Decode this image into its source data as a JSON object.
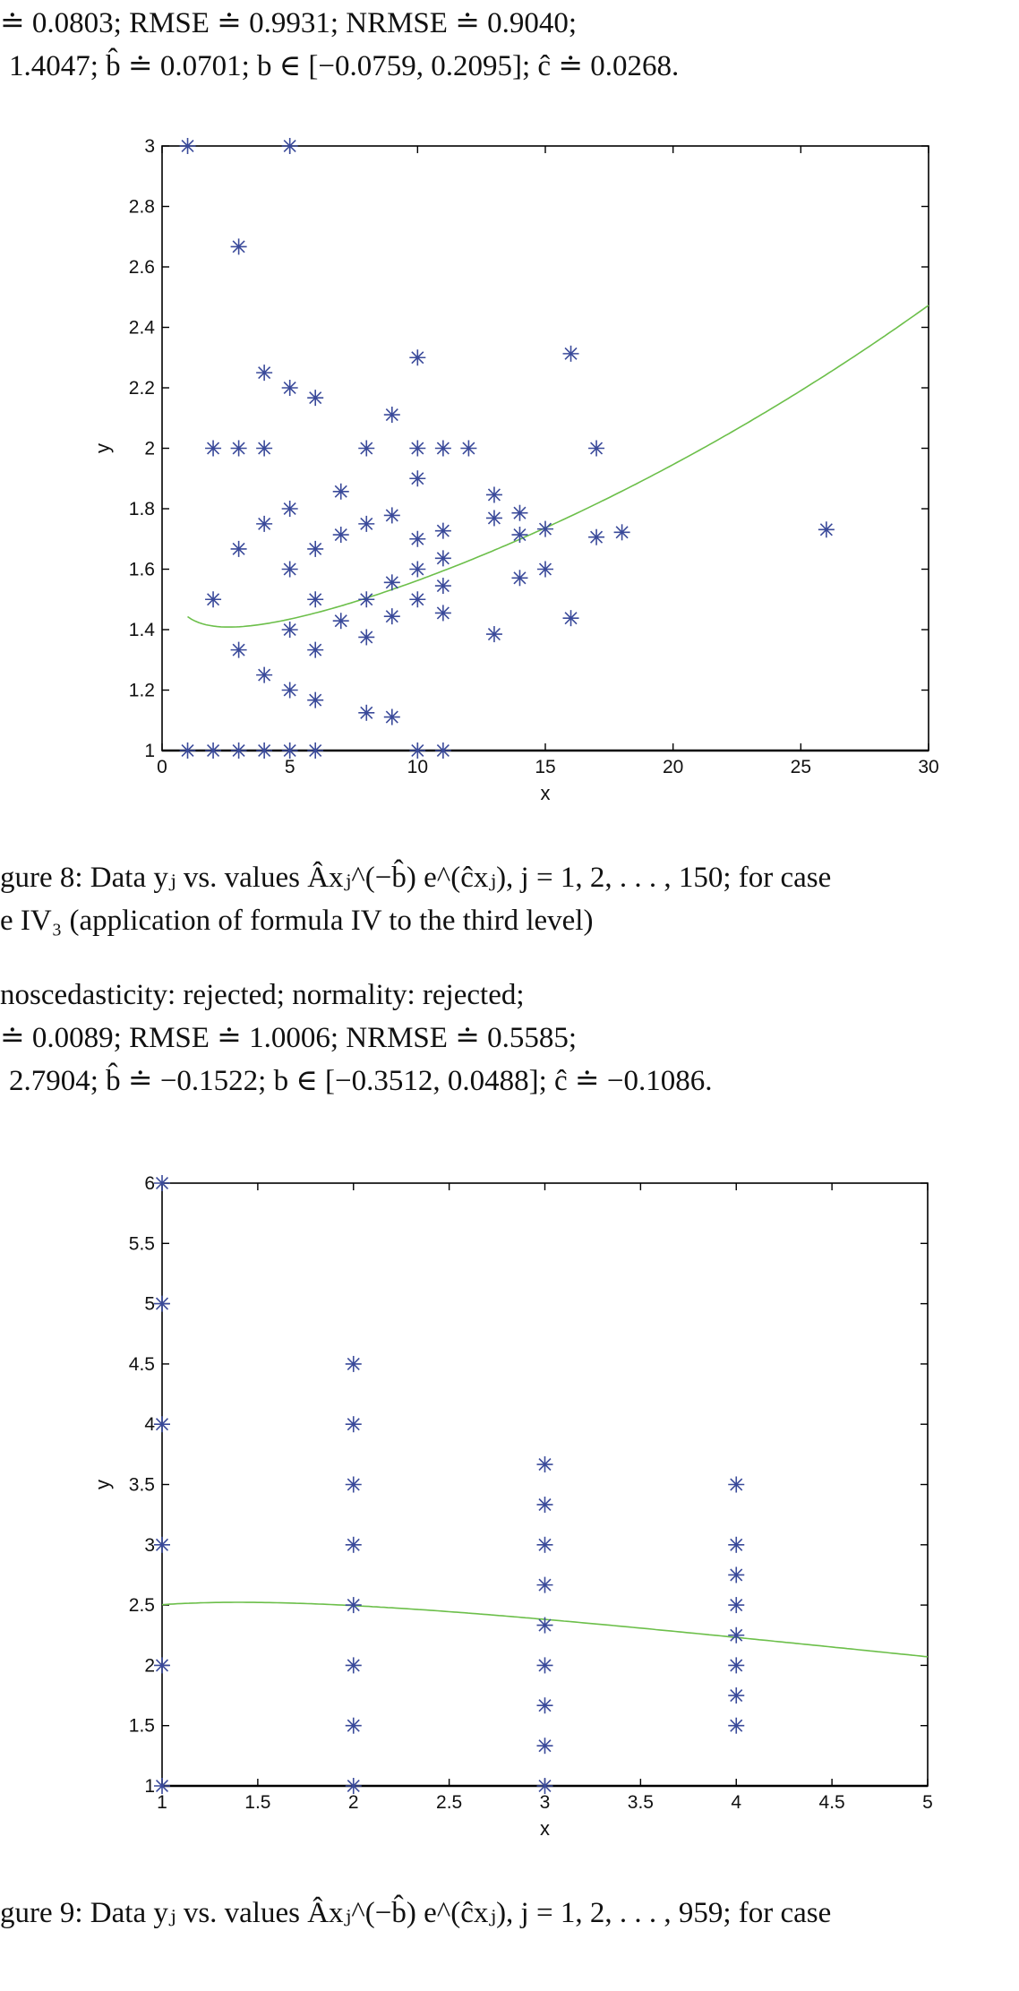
{
  "document": {
    "top_block": {
      "line1": "≐ 0.0803; RMSE ≐ 0.9931; NRMSE ≐ 0.9040;",
      "line2": "1.4047; b̂ ≐ 0.0701; b ∈ [−0.0759, 0.2095]; ĉ ≐ 0.0268."
    },
    "figure8": {
      "caption_line1": "gure 8: Data yⱼ vs. values Âxⱼ^(−b̂) e^(ĉxⱼ), j = 1, 2, . . . , 150; for case",
      "caption_line2": "e IV₃ (application of formula IV to the third level)"
    },
    "middle_block": {
      "line1": "noscedasticity: rejected; normality: rejected;",
      "line2": "≐ 0.0089; RMSE ≐ 1.0006; NRMSE ≐ 0.5585;",
      "line3": "2.7904; b̂ ≐ −0.1522; b ∈ [−0.3512, 0.0488]; ĉ ≐ −0.1086."
    },
    "figure9": {
      "caption_line1": "gure 9: Data yⱼ vs. values Âxⱼ^(−b̂) e^(ĉxⱼ), j = 1, 2, . . . , 959; for case"
    }
  },
  "colors": {
    "marker": "#3a4a9a",
    "curve": "#6cbf4a",
    "axis": "#000000"
  },
  "chart_data": [
    {
      "type": "scatter",
      "title": "",
      "xlabel": "x",
      "ylabel": "y",
      "xlim": [
        0,
        30
      ],
      "ylim": [
        1,
        3
      ],
      "xticks": [
        0,
        5,
        10,
        15,
        20,
        25,
        30
      ],
      "yticks": [
        1,
        1.2,
        1.4,
        1.6,
        1.8,
        2,
        2.2,
        2.4,
        2.6,
        2.8,
        3
      ],
      "grid": false,
      "legend": null,
      "series": [
        {
          "name": "data y_j",
          "marker": "asterisk",
          "points": [
            [
              1,
              3
            ],
            [
              1,
              1
            ],
            [
              2,
              2
            ],
            [
              2,
              1.5
            ],
            [
              2,
              1
            ],
            [
              3,
              2.667
            ],
            [
              3,
              2
            ],
            [
              3,
              1.667
            ],
            [
              3,
              1.333
            ],
            [
              3,
              1
            ],
            [
              4,
              2.25
            ],
            [
              4,
              2
            ],
            [
              4,
              1.75
            ],
            [
              4,
              1.25
            ],
            [
              4,
              1
            ],
            [
              5,
              3
            ],
            [
              5,
              2.2
            ],
            [
              5,
              1.8
            ],
            [
              5,
              1.6
            ],
            [
              5,
              1.4
            ],
            [
              5,
              1.2
            ],
            [
              5,
              1
            ],
            [
              6,
              2.167
            ],
            [
              6,
              1.667
            ],
            [
              6,
              1.5
            ],
            [
              6,
              1.333
            ],
            [
              6,
              1.167
            ],
            [
              6,
              1
            ],
            [
              7,
              1.857
            ],
            [
              7,
              1.714
            ],
            [
              7,
              1.429
            ],
            [
              8,
              2
            ],
            [
              8,
              1.75
            ],
            [
              8,
              1.5
            ],
            [
              8,
              1.375
            ],
            [
              8,
              1.125
            ],
            [
              9,
              2.111
            ],
            [
              9,
              1.778
            ],
            [
              9,
              1.556
            ],
            [
              9,
              1.444
            ],
            [
              9,
              1.111
            ],
            [
              10,
              2.3
            ],
            [
              10,
              2
            ],
            [
              10,
              1.9
            ],
            [
              10,
              1.7
            ],
            [
              10,
              1.6
            ],
            [
              10,
              1.5
            ],
            [
              10,
              1
            ],
            [
              11,
              2
            ],
            [
              11,
              1.727
            ],
            [
              11,
              1.636
            ],
            [
              11,
              1.545
            ],
            [
              11,
              1.455
            ],
            [
              11,
              1
            ],
            [
              12,
              2
            ],
            [
              13,
              1.846
            ],
            [
              13,
              1.769
            ],
            [
              13,
              1.385
            ],
            [
              14,
              1.786
            ],
            [
              14,
              1.714
            ],
            [
              14,
              1.571
            ],
            [
              15,
              1.733
            ],
            [
              15,
              1.6
            ],
            [
              16,
              2.313
            ],
            [
              16,
              1.438
            ],
            [
              17,
              2
            ],
            [
              17,
              1.706
            ],
            [
              18,
              1.722
            ],
            [
              26,
              1.731
            ]
          ]
        },
        {
          "name": "model A x^-b e^(c x)",
          "type": "line",
          "params": {
            "A": 1.4047,
            "b": 0.0701,
            "c": 0.0268
          },
          "x_range": [
            1,
            30
          ]
        }
      ]
    },
    {
      "type": "scatter",
      "title": "",
      "xlabel": "x",
      "ylabel": "y",
      "xlim": [
        1,
        5
      ],
      "ylim": [
        1,
        6
      ],
      "xticks": [
        1,
        1.5,
        2,
        2.5,
        3,
        3.5,
        4,
        4.5,
        5
      ],
      "yticks": [
        1,
        1.5,
        2,
        2.5,
        3,
        3.5,
        4,
        4.5,
        5,
        5.5,
        6
      ],
      "grid": false,
      "legend": null,
      "series": [
        {
          "name": "data y_j",
          "marker": "asterisk",
          "points": [
            [
              1,
              6
            ],
            [
              1,
              5
            ],
            [
              1,
              4
            ],
            [
              1,
              3
            ],
            [
              1,
              2
            ],
            [
              1,
              1
            ],
            [
              2,
              4.5
            ],
            [
              2,
              4
            ],
            [
              2,
              3.5
            ],
            [
              2,
              3
            ],
            [
              2,
              2.5
            ],
            [
              2,
              2
            ],
            [
              2,
              1.5
            ],
            [
              2,
              1
            ],
            [
              3,
              3.667
            ],
            [
              3,
              3.333
            ],
            [
              3,
              3
            ],
            [
              3,
              2.667
            ],
            [
              3,
              2.333
            ],
            [
              3,
              2
            ],
            [
              3,
              1.667
            ],
            [
              3,
              1.333
            ],
            [
              3,
              1
            ],
            [
              4,
              3.5
            ],
            [
              4,
              3
            ],
            [
              4,
              2.75
            ],
            [
              4,
              2.5
            ],
            [
              4,
              2.25
            ],
            [
              4,
              2
            ],
            [
              4,
              1.75
            ],
            [
              4,
              1.5
            ]
          ]
        },
        {
          "name": "model A x^-b e^(c x)",
          "type": "line",
          "params": {
            "A": 2.7904,
            "b": -0.1522,
            "c": -0.1086
          },
          "x_range": [
            1,
            5
          ]
        }
      ]
    }
  ]
}
